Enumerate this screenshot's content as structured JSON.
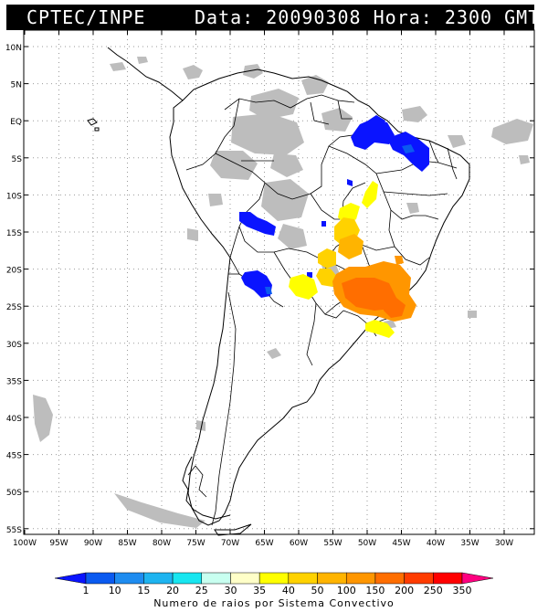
{
  "header": {
    "source": "CPTEC/INPE",
    "date_label": "Data:",
    "date_value": "20090308",
    "time_label": "Hora:",
    "time_value": "2300 GMT"
  },
  "map": {
    "lat_labels": [
      "10N",
      "5N",
      "EQ",
      "5S",
      "10S",
      "15S",
      "20S",
      "25S",
      "30S",
      "35S",
      "40S",
      "45S",
      "50S",
      "55S"
    ],
    "lon_labels": [
      "100W",
      "95W",
      "90W",
      "85W",
      "80W",
      "75W",
      "70W",
      "65W",
      "60W",
      "55W",
      "50W",
      "45W",
      "40W",
      "35W",
      "30W"
    ]
  },
  "colorbar": {
    "title": "Numero de raios por Sistema Convectivo",
    "ticks": [
      "1",
      "10",
      "15",
      "20",
      "25",
      "30",
      "35",
      "40",
      "50",
      "100",
      "150",
      "200",
      "250",
      "350"
    ],
    "colors": [
      "#0a14ff",
      "#0a5af0",
      "#1e8cf0",
      "#1eb4f0",
      "#18e6f0",
      "#c8fff0",
      "#ffffc8",
      "#ffff00",
      "#ffd200",
      "#ffb400",
      "#ff9600",
      "#ff6e00",
      "#ff3c00",
      "#ff0000",
      "#ff0080"
    ]
  }
}
